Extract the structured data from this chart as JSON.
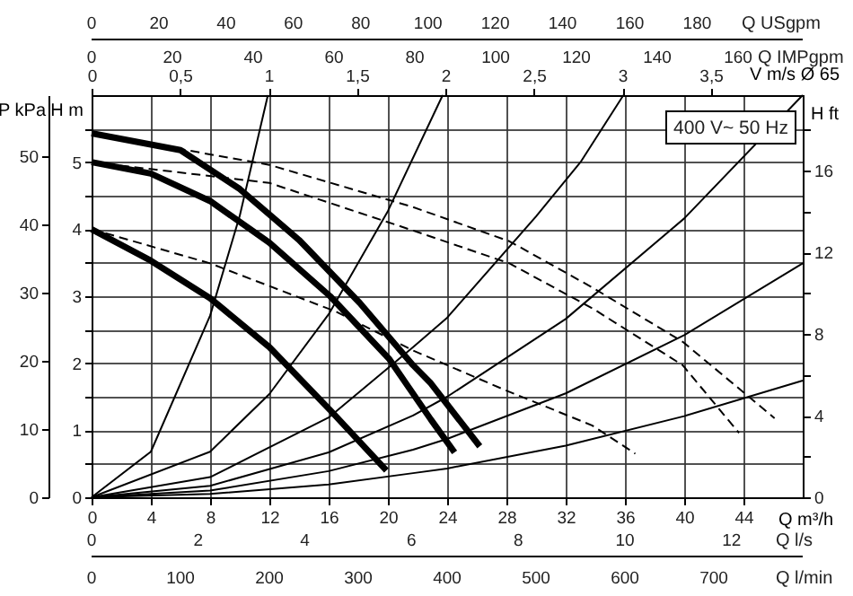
{
  "chart_data": {
    "type": "line",
    "xlabel": "Q m³/h",
    "ylabel": "H m",
    "x2label": "V m/s Ø 65",
    "y2label": "P kPa",
    "y3label": "H ft",
    "xlim": [
      0,
      48
    ],
    "xticks": [
      0,
      4,
      8,
      12,
      16,
      20,
      24,
      28,
      32,
      36,
      40,
      44
    ],
    "ylim": [
      0,
      6
    ],
    "yticks": [
      0,
      {
        "value": 0.5,
        "label": null
      },
      1,
      {
        "value": 1.5,
        "label": null
      },
      2,
      {
        "value": 2.5,
        "label": null
      },
      3,
      {
        "value": 3.5,
        "label": null
      },
      4,
      {
        "value": 4.5,
        "label": null
      },
      5,
      {
        "value": 5.5,
        "label": null
      }
    ],
    "x2lim": [
      0,
      4.02
    ],
    "x2ticks": [
      0,
      {
        "value": 0.5,
        "label": "0,5"
      },
      1,
      {
        "value": 1.5,
        "label": "1,5"
      },
      2,
      {
        "value": 2.5,
        "label": "2,5"
      },
      3,
      {
        "value": 3.5,
        "label": "3,5"
      }
    ],
    "y2lim": [
      0,
      58.9
    ],
    "y2ticks": [
      0,
      10,
      20,
      30,
      40,
      50
    ],
    "y3lim": [
      0,
      19.7
    ],
    "y3ticks": [
      0,
      {
        "value": 2,
        "label": null
      },
      4,
      {
        "value": 6,
        "label": null
      },
      8,
      {
        "value": 10,
        "label": null
      },
      12,
      {
        "value": 14,
        "label": null
      },
      16,
      {
        "value": 18,
        "label": null
      }
    ],
    "grid": true,
    "line_style": "solid",
    "annotations": [
      "400 V~ 50 Hz",
      "0",
      "20",
      "40",
      "60",
      "80",
      "100",
      "120",
      "140",
      "160",
      "180",
      "Q USgpm",
      "0",
      "20",
      "40",
      "60",
      "80",
      "100",
      "120",
      "140",
      "160",
      "Q IMPgpm",
      "0",
      "2",
      "4",
      "6",
      "8",
      "10",
      "12",
      "Q l/s",
      "0",
      "100",
      "200",
      "300",
      "400",
      "500",
      "600",
      "700",
      "Q l/min"
    ],
    "series": [
      {
        "color": "#000000",
        "x": [
          0,
          6,
          10,
          14,
          18.1,
          21.7,
          22.9,
          26.2
        ],
        "values": [
          5.43,
          5.18,
          4.6,
          3.84,
          2.9,
          1.97,
          1.7,
          0.76
        ]
      },
      {
        "color": "#000000",
        "x": [
          0,
          4,
          8,
          12,
          16.1,
          20.1,
          22.9,
          24.5
        ],
        "values": [
          5.0,
          4.83,
          4.42,
          3.8,
          3.0,
          2.06,
          1.16,
          0.67
        ]
      },
      {
        "color": "#000000",
        "x": [
          0,
          4,
          8,
          12,
          16.1,
          19.9
        ],
        "values": [
          4.0,
          3.53,
          2.97,
          2.24,
          1.3,
          0.4
        ]
      },
      {
        "color": "#000000",
        "line_style": "dashed",
        "x": [
          0,
          12,
          21.7,
          28.2,
          33.8,
          39.9,
          46.1
        ],
        "values": [
          5.43,
          4.96,
          4.33,
          3.82,
          3.13,
          2.32,
          1.18
        ]
      },
      {
        "color": "#000000",
        "line_style": "dashed",
        "x": [
          0,
          12,
          21.7,
          28.2,
          33.8,
          39.9,
          43.7
        ],
        "values": [
          5.0,
          4.69,
          3.98,
          3.49,
          2.82,
          1.97,
          0.96
        ]
      },
      {
        "color": "#000000",
        "line_style": "dashed",
        "x": [
          0,
          8,
          16.5,
          21.7,
          27.8,
          33.8,
          36.7
        ],
        "values": [
          4.0,
          3.49,
          2.77,
          2.19,
          1.61,
          1.07,
          0.65
        ]
      },
      {
        "color": "#000000",
        "x": [
          0,
          4,
          8,
          10,
          11.9
        ],
        "values": [
          0,
          0.68,
          2.71,
          4.2,
          6.0
        ]
      },
      {
        "color": "#000000",
        "x": [
          0,
          8,
          12,
          16,
          20,
          23.7
        ],
        "values": [
          0,
          0.68,
          1.54,
          2.73,
          4.27,
          6.0
        ]
      },
      {
        "color": "#000000",
        "x": [
          0,
          8,
          16,
          21.7,
          24,
          30,
          33,
          35.9
        ],
        "values": [
          0,
          0.3,
          1.19,
          2.24,
          2.68,
          4.19,
          5.0,
          6.0
        ]
      },
      {
        "color": "#000000",
        "x": [
          0,
          8,
          16,
          21.7,
          24,
          32,
          40,
          48
        ],
        "values": [
          0,
          0.17,
          0.67,
          1.22,
          1.5,
          2.66,
          4.16,
          6.0
        ]
      },
      {
        "color": "#000000",
        "x": [
          0,
          8,
          16,
          21.7,
          24,
          32,
          40,
          48
        ],
        "values": [
          0,
          0.1,
          0.39,
          0.71,
          0.87,
          1.55,
          2.42,
          3.49
        ]
      },
      {
        "color": "#000000",
        "x": [
          0,
          8,
          16,
          21.7,
          24,
          32,
          40,
          48
        ],
        "values": [
          0,
          0.05,
          0.19,
          0.36,
          0.43,
          0.77,
          1.21,
          1.74
        ]
      }
    ]
  }
}
